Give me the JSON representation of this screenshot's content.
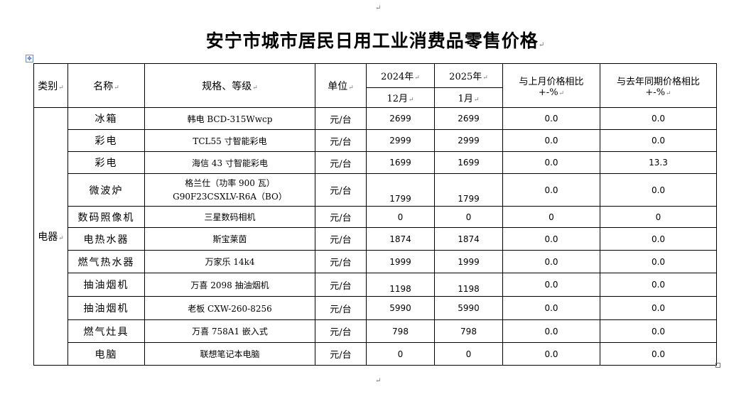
{
  "title": "安宁市城市居民日用工业消费品零售价格",
  "headers": {
    "category": "类别",
    "name": "名称",
    "spec": "规格、等级",
    "unit": "单位",
    "year1": "2024年",
    "month1": "12月",
    "year2": "2025年",
    "month2": "1月",
    "mom_line1": "与上月价格相比",
    "mom_line2": "+-%",
    "yoy_line1": "与去年同期价格相比",
    "yoy_line2": "+-%"
  },
  "category": "电器",
  "rows": [
    {
      "name": "冰箱",
      "spec": "韩电 BCD-315Wwcp",
      "unit": "元/台",
      "prev": "2699",
      "curr": "2699",
      "mom": "0.0",
      "yoy": "0.0"
    },
    {
      "name": "彩电",
      "spec": "TCL55 寸智能彩电",
      "unit": "元/台",
      "prev": "2999",
      "curr": "2999",
      "mom": "0.0",
      "yoy": "0.0"
    },
    {
      "name": "彩电",
      "spec": "海信 43 寸智能彩电",
      "unit": "元/台",
      "prev": "1699",
      "curr": "1699",
      "mom": "0.0",
      "yoy": "13.3"
    },
    {
      "name": "微波炉",
      "spec": "格兰仕（功率 900 瓦）",
      "spec2": "G90F23CSXLV-R6A（BO）",
      "unit": "元/台",
      "prev": "1799",
      "curr": "1799",
      "mom": "0.0",
      "yoy": "0.0"
    },
    {
      "name": "数码照像机",
      "spec": "三星数码相机",
      "unit": "元/台",
      "prev": "0",
      "curr": "0",
      "mom": "0",
      "yoy": "0"
    },
    {
      "name": "电热水器",
      "spec": "斯宝莱茵",
      "unit": "元/台",
      "prev": "1874",
      "curr": "1874",
      "mom": "0.0",
      "yoy": "0.0"
    },
    {
      "name": "燃气热水器",
      "spec": "万家乐 14k4",
      "unit": "元/台",
      "prev": "1999",
      "curr": "1999",
      "mom": "0.0",
      "yoy": "0.0"
    },
    {
      "name": "抽油烟机",
      "spec": "万喜 2098 抽油烟机",
      "unit": "元/台",
      "prev": "1198",
      "curr": "1198",
      "mom": "0.0",
      "yoy": "0.0"
    },
    {
      "name": "抽油烟机",
      "spec": "老板 CXW-260-8256",
      "unit": "元/台",
      "prev": "5990",
      "curr": "5990",
      "mom": "0.0",
      "yoy": "0.0"
    },
    {
      "name": "燃气灶具",
      "spec": "万喜 758A1 嵌入式",
      "unit": "元/台",
      "prev": "798",
      "curr": "798",
      "mom": "0.0",
      "yoy": "0.0"
    },
    {
      "name": "电脑",
      "spec": "联想笔记本电脑",
      "unit": "元/台",
      "prev": "0",
      "curr": "0",
      "mom": "0.0",
      "yoy": "0.0"
    }
  ]
}
